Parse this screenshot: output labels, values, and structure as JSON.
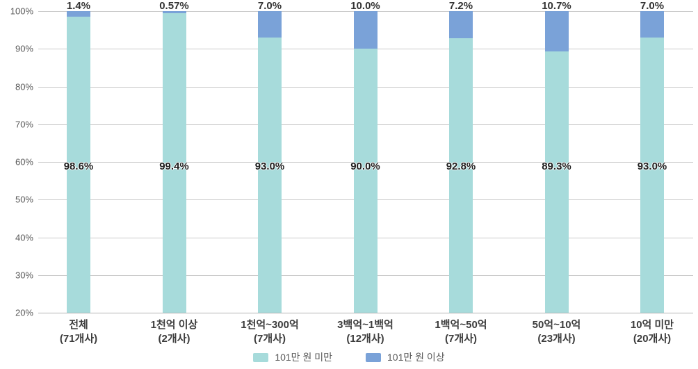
{
  "chart_data": {
    "type": "bar",
    "stacked": true,
    "title": "",
    "xlabel": "",
    "ylabel": "",
    "grid": true,
    "legend_position": "bottom",
    "y_axis": {
      "min": 20,
      "max": 100,
      "step": 10,
      "tick_labels": [
        "20%",
        "30%",
        "40%",
        "50%",
        "60%",
        "70%",
        "80%",
        "90%",
        "100%"
      ]
    },
    "categories": [
      {
        "label": "전체",
        "count": "(71개사)"
      },
      {
        "label": "1천억 이상",
        "count": "(2개사)"
      },
      {
        "label": "1천억~300억",
        "count": "(7개사)"
      },
      {
        "label": "3백억~1백억",
        "count": "(12개사)"
      },
      {
        "label": "1백억~50억",
        "count": "(7개사)"
      },
      {
        "label": "50억~10억",
        "count": "(23개사)"
      },
      {
        "label": "10억 미만",
        "count": "(20개사)"
      }
    ],
    "series": [
      {
        "name": "101만 원 미만",
        "color": "#a7dbdb",
        "values": [
          98.6,
          99.4,
          93.0,
          90.0,
          92.8,
          89.3,
          93.0
        ],
        "display_labels": [
          "98.6%",
          "99.4%",
          "93.0%",
          "90.0%",
          "92.8%",
          "89.3%",
          "93.0%"
        ]
      },
      {
        "name": "101만 원 이상",
        "color": "#7aa2d8",
        "values": [
          1.4,
          0.57,
          7.0,
          10.0,
          7.2,
          10.7,
          7.0
        ],
        "display_labels": [
          "1.4%",
          "0.57%",
          "7.0%",
          "10.0%",
          "7.2%",
          "10.7%",
          "7.0%"
        ]
      }
    ]
  },
  "colors": {
    "gridline": "#c9c9c9",
    "axis_text": "#595959",
    "label_text": "#333333"
  }
}
